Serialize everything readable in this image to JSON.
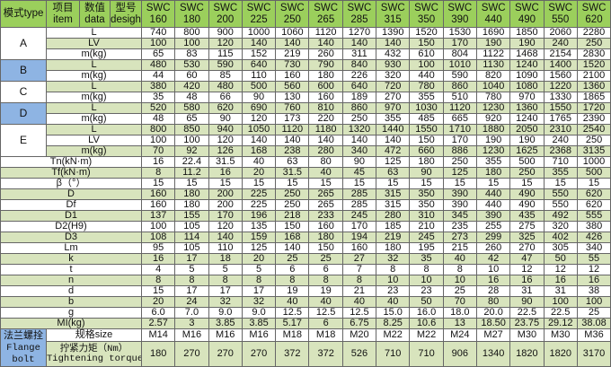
{
  "colors": {
    "header": "#9bcf5c",
    "stripe": "#d8e4bd",
    "type_highlight": "#8eb4e3"
  },
  "header": {
    "type_label": "模式type",
    "item_cn": "项目",
    "item_en": "item",
    "data_cn": "数值",
    "data_en": "data",
    "design_cn": "型号",
    "design_en": "desigh",
    "model_prefix": "SWC",
    "models": [
      "160",
      "180",
      "200",
      "225",
      "250",
      "265",
      "285",
      "315",
      "350",
      "390",
      "440",
      "490",
      "550",
      "620"
    ]
  },
  "groups": [
    {
      "type": "A",
      "color": "#ffffff",
      "rows": [
        {
          "label": "L",
          "values": [
            "740",
            "800",
            "900",
            "1000",
            "1060",
            "1120",
            "1270",
            "1390",
            "1520",
            "1530",
            "1690",
            "1850",
            "2060",
            "2280"
          ]
        },
        {
          "label": "LV",
          "values": [
            "100",
            "100",
            "120",
            "140",
            "140",
            "140",
            "140",
            "140",
            "150",
            "170",
            "190",
            "190",
            "240",
            "250"
          ]
        },
        {
          "label": "m(kg)",
          "values": [
            "65",
            "83",
            "115",
            "152",
            "219",
            "260",
            "311",
            "432",
            "610",
            "804",
            "1122",
            "1468",
            "2154",
            "2830"
          ]
        }
      ]
    },
    {
      "type": "B",
      "color": "#8eb4e3",
      "rows": [
        {
          "label": "L",
          "values": [
            "480",
            "530",
            "590",
            "640",
            "730",
            "790",
            "840",
            "930",
            "100",
            "1010",
            "1130",
            "1240",
            "1400",
            "1520"
          ]
        },
        {
          "label": "m(kg)",
          "values": [
            "44",
            "60",
            "85",
            "110",
            "160",
            "180",
            "226",
            "320",
            "440",
            "590",
            "820",
            "1090",
            "1560",
            "2100"
          ]
        }
      ]
    },
    {
      "type": "C",
      "color": "#ffffff",
      "rows": [
        {
          "label": "L",
          "values": [
            "380",
            "420",
            "480",
            "500",
            "560",
            "600",
            "640",
            "720",
            "780",
            "860",
            "1040",
            "1080",
            "1220",
            "1360"
          ]
        },
        {
          "label": "m(kg)",
          "values": [
            "35",
            "48",
            "66",
            "90",
            "130",
            "160",
            "189",
            "270",
            "355",
            "510",
            "780",
            "970",
            "1330",
            "1865"
          ]
        }
      ]
    },
    {
      "type": "D",
      "color": "#8eb4e3",
      "rows": [
        {
          "label": "L",
          "values": [
            "520",
            "580",
            "620",
            "690",
            "760",
            "810",
            "860",
            "970",
            "1030",
            "1120",
            "1230",
            "1360",
            "1550",
            "1720"
          ]
        },
        {
          "label": "m(kg)",
          "values": [
            "48",
            "65",
            "90",
            "120",
            "173",
            "220",
            "250",
            "355",
            "485",
            "665",
            "920",
            "1240",
            "1765",
            "2390"
          ]
        }
      ]
    },
    {
      "type": "E",
      "color": "#ffffff",
      "rows": [
        {
          "label": "L",
          "values": [
            "800",
            "850",
            "940",
            "1050",
            "1120",
            "1180",
            "1320",
            "1440",
            "1550",
            "1710",
            "1880",
            "2050",
            "2310",
            "2540"
          ]
        },
        {
          "label": "LV",
          "values": [
            "100",
            "100",
            "120",
            "140",
            "140",
            "140",
            "140",
            "140",
            "150",
            "170",
            "190",
            "190",
            "240",
            "250"
          ]
        },
        {
          "label": "m(kg)",
          "values": [
            "70",
            "92",
            "126",
            "168",
            "238",
            "280",
            "340",
            "472",
            "660",
            "886",
            "1230",
            "1625",
            "2368",
            "3135"
          ]
        }
      ]
    }
  ],
  "params": [
    {
      "label": "Tn(kN·m)",
      "values": [
        "16",
        "22.4",
        "31.5",
        "40",
        "63",
        "80",
        "90",
        "125",
        "180",
        "250",
        "355",
        "500",
        "710",
        "1000"
      ]
    },
    {
      "label": "Tf(kN·m)",
      "values": [
        "8",
        "11.2",
        "16",
        "20",
        "31.5",
        "40",
        "45",
        "63",
        "90",
        "125",
        "180",
        "250",
        "355",
        "500"
      ]
    },
    {
      "label": "β（°）",
      "values": [
        "15",
        "15",
        "15",
        "15",
        "15",
        "15",
        "15",
        "15",
        "15",
        "15",
        "15",
        "15",
        "15",
        "15"
      ]
    },
    {
      "label": "D",
      "values": [
        "160",
        "180",
        "200",
        "225",
        "250",
        "265",
        "285",
        "315",
        "350",
        "390",
        "440",
        "490",
        "550",
        "620"
      ]
    },
    {
      "label": "Df",
      "values": [
        "160",
        "180",
        "200",
        "225",
        "250",
        "265",
        "285",
        "315",
        "350",
        "390",
        "440",
        "490",
        "550",
        "620"
      ]
    },
    {
      "label": "D1",
      "values": [
        "137",
        "155",
        "170",
        "196",
        "218",
        "233",
        "245",
        "280",
        "310",
        "345",
        "390",
        "435",
        "492",
        "555"
      ]
    },
    {
      "label": "D2(H9)",
      "values": [
        "100",
        "105",
        "120",
        "135",
        "150",
        "160",
        "170",
        "185",
        "210",
        "235",
        "255",
        "275",
        "320",
        "380"
      ]
    },
    {
      "label": "D3",
      "values": [
        "108",
        "114",
        "140",
        "159",
        "168",
        "180",
        "194",
        "219",
        "245",
        "273",
        "299",
        "325",
        "402",
        "426"
      ]
    },
    {
      "label": "Lm",
      "values": [
        "95",
        "105",
        "110",
        "125",
        "140",
        "150",
        "160",
        "180",
        "195",
        "215",
        "260",
        "270",
        "305",
        "340"
      ]
    },
    {
      "label": "k",
      "values": [
        "16",
        "17",
        "18",
        "20",
        "25",
        "25",
        "27",
        "32",
        "35",
        "40",
        "42",
        "47",
        "50",
        "55"
      ]
    },
    {
      "label": "t",
      "values": [
        "4",
        "5",
        "5",
        "5",
        "6",
        "6",
        "7",
        "8",
        "8",
        "8",
        "10",
        "12",
        "12",
        "12"
      ]
    },
    {
      "label": "n",
      "values": [
        "8",
        "8",
        "8",
        "8",
        "8",
        "8",
        "8",
        "10",
        "10",
        "10",
        "16",
        "16",
        "16",
        "16"
      ]
    },
    {
      "label": "d",
      "values": [
        "15",
        "17",
        "17",
        "17",
        "19",
        "19",
        "21",
        "23",
        "23",
        "25",
        "28",
        "31",
        "31",
        "38"
      ]
    },
    {
      "label": "b",
      "values": [
        "20",
        "24",
        "32",
        "32",
        "40",
        "40",
        "40",
        "40",
        "50",
        "70",
        "80",
        "90",
        "100",
        "100"
      ]
    },
    {
      "label": "g",
      "values": [
        "6.0",
        "7.0",
        "9.0",
        "9.0",
        "12.5",
        "12.5",
        "12.5",
        "15.0",
        "16.0",
        "18.0",
        "20.0",
        "22.5",
        "22.5",
        "25"
      ]
    },
    {
      "label": "MI(kg)",
      "values": [
        "2.57",
        "3",
        "3.85",
        "3.85",
        "5.17",
        "6",
        "6.75",
        "8.25",
        "10.6",
        "13",
        "18.50",
        "23.75",
        "29.12",
        "38.08"
      ]
    }
  ],
  "flange": {
    "label_cn": "法兰螺拴",
    "label_en_1": "Flange",
    "label_en_2": "bolt",
    "size_label": "规格size",
    "size_values": [
      "M14",
      "M16",
      "M16",
      "M16",
      "M18",
      "M18",
      "M20",
      "M22",
      "M22",
      "M24",
      "M27",
      "M30",
      "M30",
      "M36"
    ],
    "torque_label_cn": "拧紧力矩（Nm）",
    "torque_label_en": "Tightening torque",
    "torque_values": [
      "180",
      "270",
      "270",
      "270",
      "372",
      "372",
      "526",
      "710",
      "710",
      "906",
      "1340",
      "1820",
      "1820",
      "3170"
    ]
  }
}
